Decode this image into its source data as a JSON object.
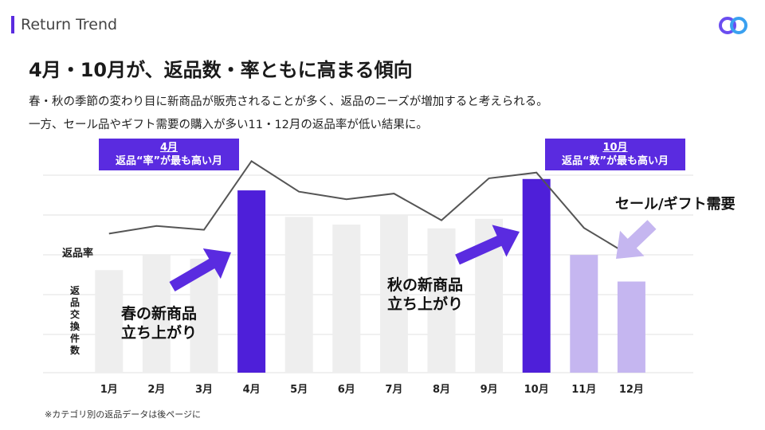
{
  "header": {
    "section_title": "Return Trend"
  },
  "headline": "4月・10月が、返品数・率ともに高まる傾向",
  "subtext": [
    "春・秋の季節の変わり目に新商品が販売されることが多く、返品のニーズが増加すると考えられる。",
    "一方、セール品やギフト需要の購入が多い11・12月の返品率が低い結果に。"
  ],
  "callouts": {
    "april": {
      "title": "4月",
      "body": "返品“率”が最も高い月"
    },
    "october": {
      "title": "10月",
      "body": "返品“数”が最も高い月"
    }
  },
  "annotations": {
    "spring_line1": "春の新商品",
    "spring_line2": "立ち上がり",
    "autumn_line1": "秋の新商品",
    "autumn_line2": "立ち上がり",
    "sale": "セール/ギフト需要"
  },
  "footnote": "※カテゴリ別の返品データは後ページに",
  "colors": {
    "accent": "#5a2be0",
    "bar_default": "#eeeeee",
    "bar_highlight": "#4e1fd9",
    "bar_light": "#c5b6f0",
    "line": "#555555"
  },
  "chart_data": {
    "type": "bar+line",
    "categories": [
      "1月",
      "2月",
      "3月",
      "4月",
      "5月",
      "6月",
      "7月",
      "8月",
      "9月",
      "10月",
      "11月",
      "12月"
    ],
    "series": [
      {
        "name": "返品交換件数",
        "type": "bar",
        "values": [
          2.7,
          3.1,
          3.0,
          4.8,
          4.1,
          3.9,
          4.15,
          3.8,
          4.05,
          5.1,
          3.1,
          2.4
        ]
      },
      {
        "name": "返品率",
        "type": "line",
        "values": [
          3.2,
          3.6,
          3.4,
          7.0,
          5.4,
          5.0,
          5.3,
          3.9,
          6.1,
          6.4,
          3.5,
          2.0
        ]
      }
    ],
    "highlight": {
      "dark": [
        "4月",
        "10月"
      ],
      "light": [
        "11月",
        "12月"
      ]
    },
    "ylabel_bar": "返品交換件数",
    "ylabel_line": "返品率",
    "ylim": [
      0,
      5.2
    ]
  }
}
